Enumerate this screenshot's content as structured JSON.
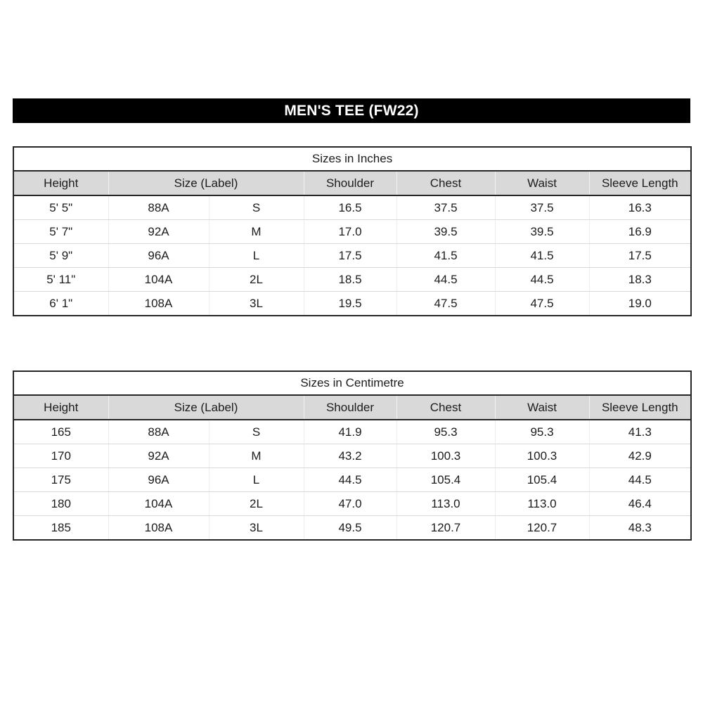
{
  "banner": {
    "title": "MEN'S TEE (FW22)",
    "bg_color": "#000000",
    "text_color": "#ffffff"
  },
  "style": {
    "header_row_bg": "#d9d9d9",
    "border_dark": "#262626",
    "row_divider": "#d9d9d9"
  },
  "tables": [
    {
      "title": "Sizes in Inches",
      "columns": [
        "Height",
        "Size (Label)",
        "Shoulder",
        "Chest",
        "Waist",
        "Sleeve Length"
      ],
      "rows": [
        [
          "5' 5\"",
          "88A",
          "S",
          "16.5",
          "37.5",
          "37.5",
          "16.3"
        ],
        [
          "5' 7\"",
          "92A",
          "M",
          "17.0",
          "39.5",
          "39.5",
          "16.9"
        ],
        [
          "5' 9\"",
          "96A",
          "L",
          "17.5",
          "41.5",
          "41.5",
          "17.5"
        ],
        [
          "5' 11\"",
          "104A",
          "2L",
          "18.5",
          "44.5",
          "44.5",
          "18.3"
        ],
        [
          "6' 1\"",
          "108A",
          "3L",
          "19.5",
          "47.5",
          "47.5",
          "19.0"
        ]
      ]
    },
    {
      "title": "Sizes in Centimetre",
      "columns": [
        "Height",
        "Size (Label)",
        "Shoulder",
        "Chest",
        "Waist",
        "Sleeve Length"
      ],
      "rows": [
        [
          "165",
          "88A",
          "S",
          "41.9",
          "95.3",
          "95.3",
          "41.3"
        ],
        [
          "170",
          "92A",
          "M",
          "43.2",
          "100.3",
          "100.3",
          "42.9"
        ],
        [
          "175",
          "96A",
          "L",
          "44.5",
          "105.4",
          "105.4",
          "44.5"
        ],
        [
          "180",
          "104A",
          "2L",
          "47.0",
          "113.0",
          "113.0",
          "46.4"
        ],
        [
          "185",
          "108A",
          "3L",
          "49.5",
          "120.7",
          "120.7",
          "48.3"
        ]
      ]
    }
  ]
}
